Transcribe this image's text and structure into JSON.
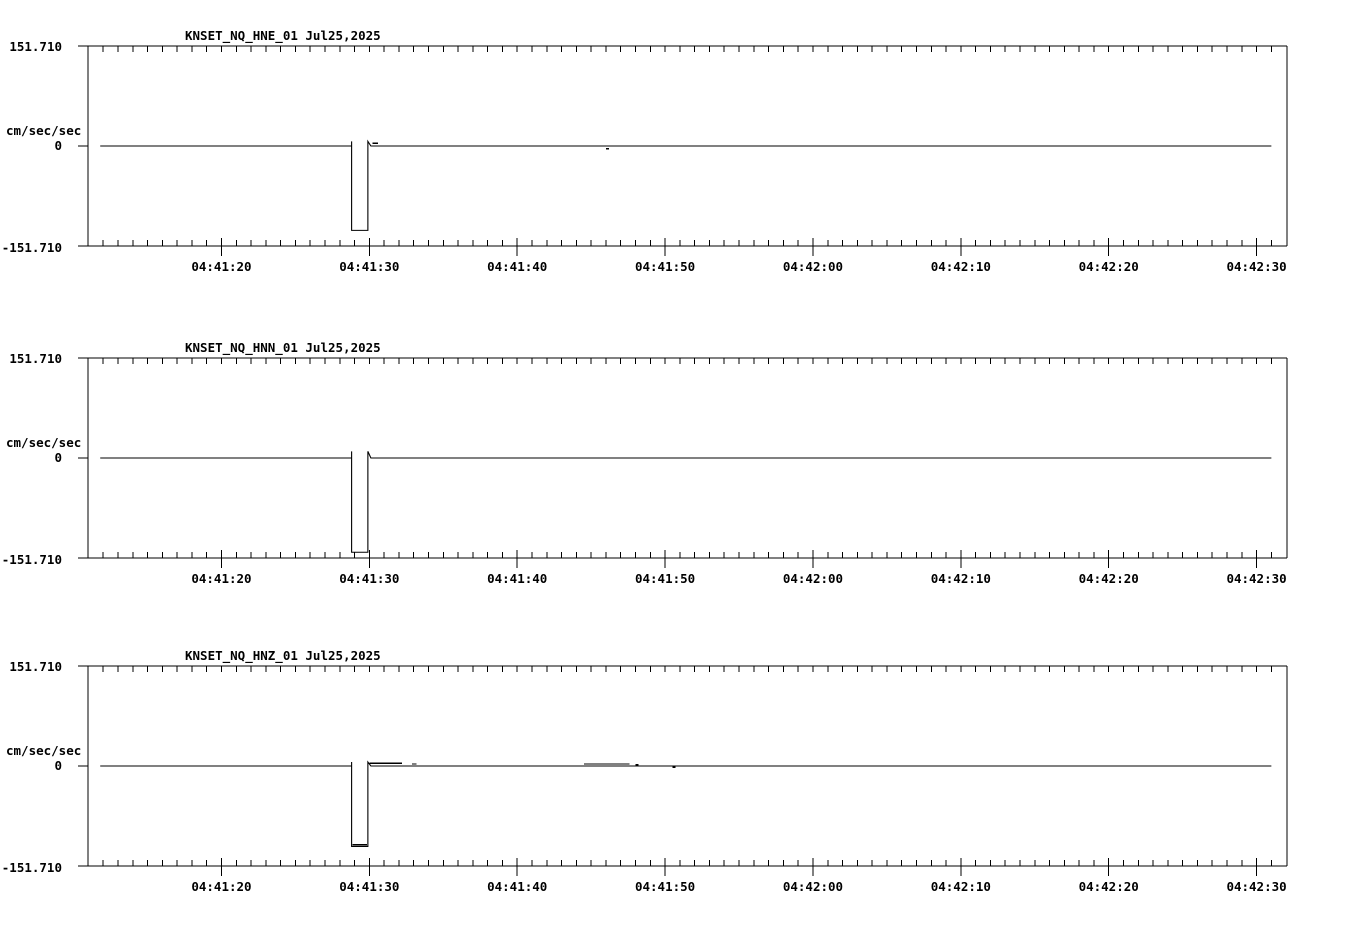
{
  "page": {
    "background_color": "#ffffff",
    "trace_color": "#000000",
    "text_color": "#000000"
  },
  "chart_data": [
    {
      "type": "line",
      "title": "KNSET_NQ_HNE_01  Jul25,2025",
      "channel": "HNE",
      "date": "Jul25,2025",
      "ylabel": "cm/sec/sec",
      "ylim": [
        -151.71,
        151.71
      ],
      "ytick_labels": [
        "151.710",
        "0",
        "-151.710"
      ],
      "ytick_values": [
        151.71,
        0,
        -151.71
      ],
      "grid": false,
      "x_axis": {
        "start_time": "04:41:11",
        "end_time": "04:42:32",
        "minor_tick_interval_s": 1,
        "major_tick_labels": [
          "04:41:20",
          "04:41:30",
          "04:41:40",
          "04:41:50",
          "04:42:00",
          "04:42:10",
          "04:42:20",
          "04:42:30"
        ],
        "major_tick_offsets_s": [
          9,
          19,
          29,
          39,
          49,
          59,
          69,
          79
        ]
      },
      "series": {
        "name": "HNE",
        "units": "cm/sec/sec",
        "baseline_value": 0,
        "trace_start_s": 0.8,
        "trace_end_s": 80.0,
        "pulse": {
          "start_s": 17.8,
          "end_s": 18.9,
          "bottom_value": -128,
          "edge_overshoot_value": 7,
          "bottom_noisy": false
        },
        "noise": [
          {
            "start_s": 19.2,
            "end_s": 19.6,
            "value": 4
          },
          {
            "start_s": 35.0,
            "end_s": 35.2,
            "value": -4
          }
        ]
      }
    },
    {
      "type": "line",
      "title": "KNSET_NQ_HNN_01  Jul25,2025",
      "channel": "HNN",
      "date": "Jul25,2025",
      "ylabel": "cm/sec/sec",
      "ylim": [
        -151.71,
        151.71
      ],
      "ytick_labels": [
        "151.710",
        "0",
        "-151.710"
      ],
      "ytick_values": [
        151.71,
        0,
        -151.71
      ],
      "grid": false,
      "x_axis": {
        "start_time": "04:41:11",
        "end_time": "04:42:32",
        "minor_tick_interval_s": 1,
        "major_tick_labels": [
          "04:41:20",
          "04:41:30",
          "04:41:40",
          "04:41:50",
          "04:42:00",
          "04:42:10",
          "04:42:20",
          "04:42:30"
        ],
        "major_tick_offsets_s": [
          9,
          19,
          29,
          39,
          49,
          59,
          69,
          79
        ]
      },
      "series": {
        "name": "HNN",
        "units": "cm/sec/sec",
        "baseline_value": 0,
        "trace_start_s": 0.8,
        "trace_end_s": 80.0,
        "pulse": {
          "start_s": 17.8,
          "end_s": 18.9,
          "bottom_value": -143,
          "edge_overshoot_value": 10,
          "bottom_noisy": false
        },
        "noise": []
      }
    },
    {
      "type": "line",
      "title": "KNSET_NQ_HNZ_01  Jul25,2025",
      "channel": "HNZ",
      "date": "Jul25,2025",
      "ylabel": "cm/sec/sec",
      "ylim": [
        -151.71,
        151.71
      ],
      "ytick_labels": [
        "151.710",
        "0",
        "-151.710"
      ],
      "ytick_values": [
        151.71,
        0,
        -151.71
      ],
      "grid": false,
      "x_axis": {
        "start_time": "04:41:11",
        "end_time": "04:42:32",
        "minor_tick_interval_s": 1,
        "major_tick_labels": [
          "04:41:20",
          "04:41:30",
          "04:41:40",
          "04:41:50",
          "04:42:00",
          "04:42:10",
          "04:42:20",
          "04:42:30"
        ],
        "major_tick_offsets_s": [
          9,
          19,
          29,
          39,
          49,
          59,
          69,
          79
        ]
      },
      "series": {
        "name": "HNZ",
        "units": "cm/sec/sec",
        "baseline_value": 0,
        "trace_start_s": 0.8,
        "trace_end_s": 80.0,
        "pulse": {
          "start_s": 17.8,
          "end_s": 18.9,
          "bottom_value": -122,
          "edge_overshoot_value": 6,
          "bottom_noisy": true
        },
        "noise": [
          {
            "start_s": 19.0,
            "end_s": 21.2,
            "value": 4
          },
          {
            "start_s": 21.9,
            "end_s": 22.2,
            "value": 3
          },
          {
            "start_s": 33.5,
            "end_s": 36.6,
            "value": 3
          },
          {
            "start_s": 37.0,
            "end_s": 37.2,
            "value": 2
          },
          {
            "start_s": 39.5,
            "end_s": 39.7,
            "value": -2
          }
        ]
      }
    }
  ]
}
